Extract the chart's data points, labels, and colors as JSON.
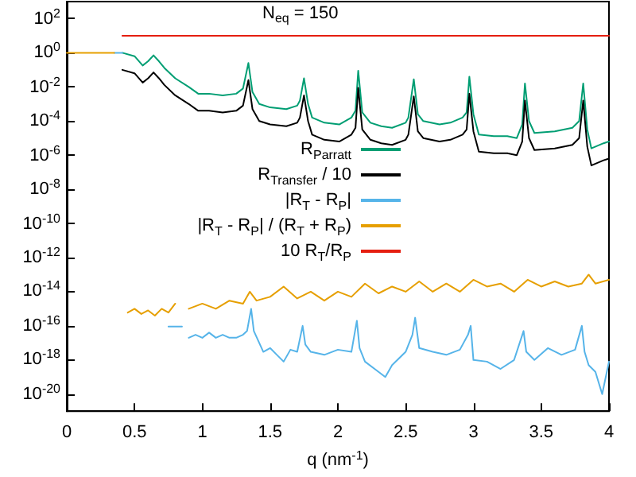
{
  "chart_data": {
    "type": "line",
    "xlabel": "q (nm$^{-1}$)",
    "annotations": [
      "N$_{eq}$ = 150"
    ],
    "xlim": [
      0,
      4
    ],
    "xticks": [
      0,
      0.5,
      1,
      1.5,
      2,
      2.5,
      3,
      3.5,
      4
    ],
    "ylim": [
      1e-21,
      1000
    ],
    "yticks": [
      {
        "value": 1e-20,
        "label": "10$^{-20}$"
      },
      {
        "value": 1e-18,
        "label": "10$^{-18}$"
      },
      {
        "value": 1e-16,
        "label": "10$^{-16}$"
      },
      {
        "value": 1e-14,
        "label": "10$^{-14}$"
      },
      {
        "value": 1e-12,
        "label": "10$^{-12}$"
      },
      {
        "value": 1e-10,
        "label": "10$^{-10}$"
      },
      {
        "value": 1e-08,
        "label": "10$^{-8}$"
      },
      {
        "value": 1e-06,
        "label": "10$^{-6}$"
      },
      {
        "value": 0.0001,
        "label": "10$^{-4}$"
      },
      {
        "value": 0.01,
        "label": "10$^{-2}$"
      },
      {
        "value": 1,
        "label": "10$^{0}$"
      },
      {
        "value": 100,
        "label": "10$^{2}$"
      }
    ],
    "log": "y",
    "grid": false,
    "legend": "center",
    "marker": "none",
    "line_style": "solid",
    "series": [
      {
        "name": "R$_{Parratt}$",
        "color": "#009e73",
        "x": [
          0.41,
          0.5,
          0.56,
          0.6,
          0.64,
          0.68,
          0.72,
          0.8,
          0.9,
          0.97,
          1.05,
          1.15,
          1.25,
          1.3,
          1.34,
          1.37,
          1.42,
          1.5,
          1.62,
          1.7,
          1.72,
          1.75,
          1.78,
          1.81,
          1.9,
          2.01,
          2.1,
          2.13,
          2.15,
          2.18,
          2.24,
          2.32,
          2.4,
          2.5,
          2.52,
          2.56,
          2.59,
          2.63,
          2.75,
          2.83,
          2.92,
          2.95,
          2.97,
          3.0,
          3.04,
          3.15,
          3.25,
          3.32,
          3.36,
          3.38,
          3.41,
          3.45,
          3.6,
          3.73,
          3.78,
          3.81,
          3.84,
          3.87,
          3.96,
          4.0
        ],
        "values": [
          1,
          0.63,
          0.18,
          0.32,
          0.71,
          0.32,
          0.13,
          0.032,
          0.01,
          0.004,
          0.004,
          0.0032,
          0.004,
          0.008,
          0.25,
          0.005,
          0.001,
          0.00063,
          0.0005,
          0.0008,
          0.0016,
          0.032,
          0.001,
          0.00016,
          8e-05,
          6.3e-05,
          0.00016,
          0.0004,
          0.089,
          0.00032,
          8e-05,
          5e-05,
          4e-05,
          8e-05,
          0.00016,
          0.028,
          0.00025,
          0.0001,
          6.3e-05,
          8e-05,
          0.00016,
          0.00032,
          0.04,
          0.00025,
          1.6e-05,
          1.3e-05,
          1.3e-05,
          1e-05,
          6.3e-05,
          0.016,
          0.0001,
          2e-05,
          2.5e-05,
          4e-05,
          0.0001,
          0.016,
          3.2e-05,
          2.5e-06,
          5e-06,
          6.3e-06
        ]
      },
      {
        "name": "R$_{Transfer}$ / 10",
        "color": "#000000",
        "x": [
          0.41,
          0.5,
          0.56,
          0.6,
          0.64,
          0.68,
          0.72,
          0.8,
          0.9,
          0.97,
          1.05,
          1.15,
          1.25,
          1.3,
          1.34,
          1.37,
          1.42,
          1.5,
          1.62,
          1.7,
          1.72,
          1.75,
          1.78,
          1.81,
          1.9,
          2.01,
          2.1,
          2.13,
          2.15,
          2.18,
          2.24,
          2.32,
          2.4,
          2.5,
          2.52,
          2.56,
          2.59,
          2.63,
          2.75,
          2.83,
          2.92,
          2.95,
          2.97,
          3.0,
          3.04,
          3.15,
          3.25,
          3.32,
          3.36,
          3.38,
          3.41,
          3.45,
          3.6,
          3.73,
          3.78,
          3.81,
          3.84,
          3.87,
          3.96,
          4.0
        ],
        "values": [
          0.1,
          0.063,
          0.018,
          0.032,
          0.071,
          0.032,
          0.013,
          0.0032,
          0.001,
          0.0004,
          0.0004,
          0.00032,
          0.0004,
          0.0008,
          0.025,
          0.0005,
          0.0001,
          6.3e-05,
          5e-05,
          8e-05,
          0.00016,
          0.0032,
          0.0001,
          1.6e-05,
          8e-06,
          6.3e-06,
          1.6e-05,
          4e-05,
          0.0089,
          3.2e-05,
          8e-06,
          5e-06,
          4e-06,
          8e-06,
          1.6e-05,
          0.0028,
          2.5e-05,
          1e-05,
          6.3e-06,
          8e-06,
          1.6e-05,
          3.2e-05,
          0.004,
          2.5e-05,
          1.6e-06,
          1.3e-06,
          1.3e-06,
          1e-06,
          6.3e-06,
          0.0016,
          1e-05,
          2e-06,
          2.5e-06,
          4e-06,
          1e-05,
          0.0016,
          3.2e-06,
          2.5e-07,
          5e-07,
          6.3e-07
        ]
      },
      {
        "name": "|R$_{T}$ - R$_{P}$|",
        "color": "#56b4e9",
        "x": [
          0.35,
          0.41,
          0.42,
          0.75,
          0.85,
          0.87,
          0.9,
          0.95,
          1.0,
          1.05,
          1.1,
          1.15,
          1.2,
          1.25,
          1.3,
          1.33,
          1.36,
          1.38,
          1.42,
          1.45,
          1.5,
          1.55,
          1.6,
          1.65,
          1.7,
          1.74,
          1.76,
          1.8,
          1.9,
          2.0,
          2.1,
          2.14,
          2.16,
          2.2,
          2.3,
          2.35,
          2.4,
          2.5,
          2.55,
          2.57,
          2.6,
          2.7,
          2.8,
          2.9,
          2.96,
          2.98,
          3.0,
          3.1,
          3.2,
          3.3,
          3.37,
          3.39,
          3.45,
          3.55,
          3.65,
          3.75,
          3.8,
          3.82,
          3.85,
          3.9,
          3.95,
          4.0
        ],
        "values": [
          1,
          1,
          null,
          9e-17,
          9e-17,
          null,
          2e-17,
          3e-17,
          2e-17,
          4e-17,
          2e-17,
          3e-17,
          2e-17,
          2e-17,
          3e-17,
          5e-17,
          1e-15,
          5e-17,
          1e-17,
          3e-18,
          5e-18,
          2e-18,
          8e-19,
          4e-18,
          3e-18,
          1e-16,
          8e-18,
          3e-18,
          2e-18,
          4e-18,
          3e-18,
          2e-16,
          5e-18,
          8e-19,
          2e-19,
          1e-19,
          5e-19,
          3e-18,
          3e-17,
          3e-16,
          5e-18,
          3e-18,
          2e-18,
          4e-18,
          3e-17,
          1e-16,
          1e-18,
          8e-19,
          3e-19,
          1e-18,
          5e-17,
          3e-18,
          1e-18,
          5e-18,
          2e-18,
          4e-18,
          1e-16,
          3e-18,
          5e-19,
          2e-19,
          1e-20,
          8e-19
        ]
      },
      {
        "name": "|R$_{T}$ - R$_{P}$| / (R$_{T}$ + R$_{P}$)",
        "color": "#e69f00",
        "x": [
          0,
          0.35,
          0.36,
          0.45,
          0.5,
          0.55,
          0.6,
          0.65,
          0.7,
          0.75,
          0.8,
          0.85,
          0.9,
          1.0,
          1.1,
          1.2,
          1.3,
          1.35,
          1.4,
          1.5,
          1.6,
          1.7,
          1.8,
          1.9,
          2.0,
          2.1,
          2.2,
          2.3,
          2.4,
          2.5,
          2.6,
          2.7,
          2.8,
          2.9,
          3.0,
          3.1,
          3.2,
          3.3,
          3.4,
          3.5,
          3.6,
          3.7,
          3.8,
          3.85,
          3.9,
          4.0
        ],
        "values": [
          1,
          1,
          null,
          6e-16,
          1e-15,
          5e-16,
          8e-16,
          4e-16,
          1e-15,
          6e-16,
          2e-15,
          null,
          1e-15,
          2e-15,
          1e-15,
          3e-15,
          2e-15,
          1e-14,
          3e-15,
          5e-15,
          2e-14,
          4e-15,
          1e-14,
          3e-15,
          1e-14,
          5e-15,
          3e-14,
          8e-15,
          2e-14,
          1e-14,
          4e-14,
          1e-14,
          3e-14,
          1e-14,
          5e-14,
          2e-14,
          3e-14,
          1e-14,
          5e-14,
          2e-14,
          4e-14,
          2e-14,
          3e-14,
          1e-13,
          3e-14,
          5e-14
        ]
      },
      {
        "name": "10 R$_{T}$/R$_{P}$",
        "color": "#e51e10",
        "x": [
          0.41,
          4
        ],
        "values": [
          10,
          10
        ]
      }
    ]
  }
}
